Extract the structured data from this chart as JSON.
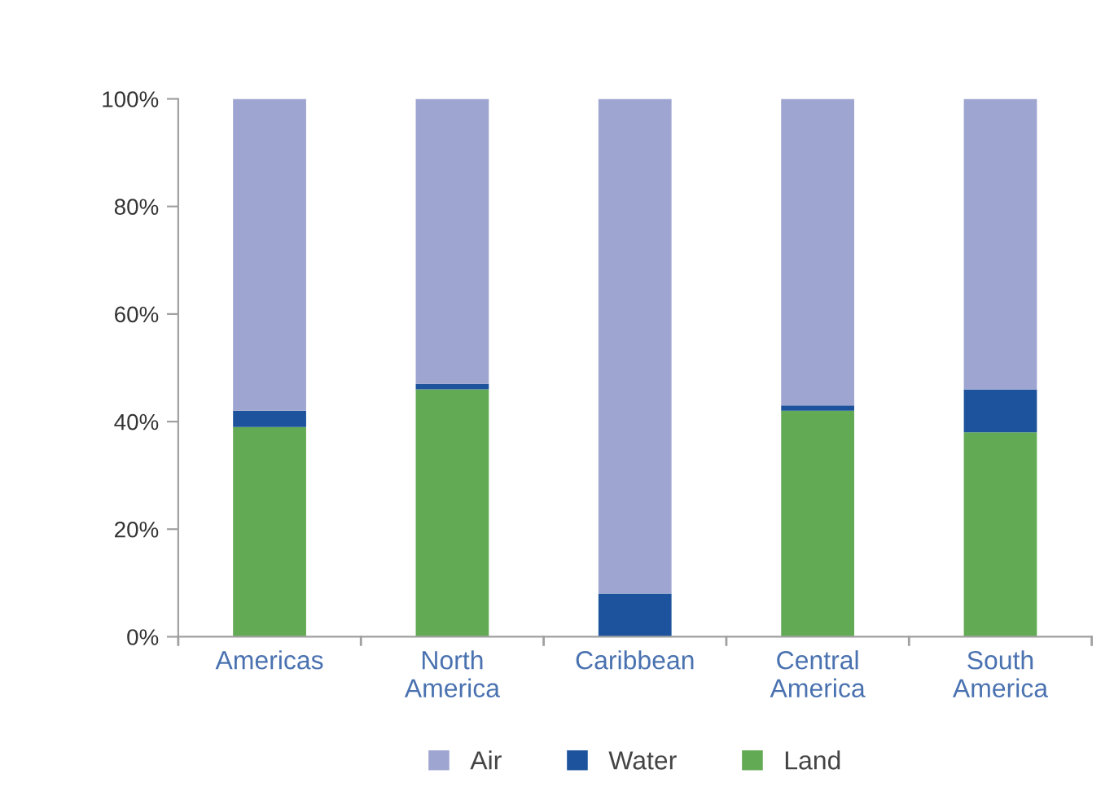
{
  "chart_data": {
    "type": "bar",
    "stacked": true,
    "categories": [
      "Americas",
      "North\nAmerica",
      "Caribbean",
      "Central\nAmerica",
      "South\nAmerica"
    ],
    "series": [
      {
        "name": "Land",
        "color": "#63aa54",
        "values": [
          39,
          46,
          0,
          42,
          38
        ]
      },
      {
        "name": "Water",
        "color": "#1c539c",
        "values": [
          3,
          1,
          8,
          1,
          8
        ]
      },
      {
        "name": "Air",
        "color": "#9ea5d0",
        "values": [
          58,
          53,
          92,
          57,
          54
        ]
      }
    ],
    "ylim": [
      0,
      100
    ],
    "yticks": [
      {
        "value": 0,
        "label": "0%"
      },
      {
        "value": 20,
        "label": "20%"
      },
      {
        "value": 40,
        "label": "40%"
      },
      {
        "value": 60,
        "label": "60%"
      },
      {
        "value": 80,
        "label": "80%"
      },
      {
        "value": 100,
        "label": "100%"
      }
    ],
    "grid": false,
    "legend": "bottom"
  }
}
